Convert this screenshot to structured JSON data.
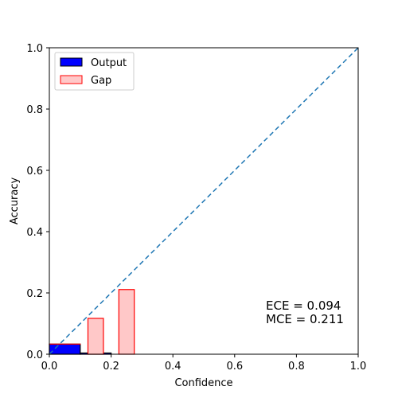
{
  "chart_data": {
    "type": "bar",
    "title": "",
    "xlabel": "Confidence",
    "ylabel": "Accuracy",
    "xlim": [
      0.0,
      1.0
    ],
    "ylim": [
      0.0,
      1.0
    ],
    "x_ticks": [
      "0.0",
      "0.2",
      "0.4",
      "0.6",
      "0.8",
      "1.0"
    ],
    "y_ticks": [
      "0.0",
      "0.2",
      "0.4",
      "0.6",
      "0.8",
      "1.0"
    ],
    "grid": false,
    "legend_position": "top-left",
    "legend": [
      {
        "name": "Output",
        "color": "#0000ff",
        "edge": "#000000"
      },
      {
        "name": "Gap",
        "color": "#ffc8c8",
        "edge": "#ff0000"
      }
    ],
    "series": [
      {
        "name": "Output",
        "bins": [
          {
            "x0": 0.0,
            "x1": 0.1,
            "value": 0.033
          },
          {
            "x0": 0.1,
            "x1": 0.2,
            "value": 0.004
          }
        ]
      },
      {
        "name": "Gap",
        "bins": [
          {
            "x0": 0.0,
            "x1": 0.1,
            "bottom": 0.033,
            "value": 0.0
          },
          {
            "x0": 0.125,
            "x1": 0.175,
            "bottom": 0.0,
            "value": 0.117
          },
          {
            "x0": 0.225,
            "x1": 0.275,
            "bottom": 0.0,
            "value": 0.211
          }
        ]
      }
    ],
    "reference_line": {
      "from": [
        0.0,
        0.0
      ],
      "to": [
        1.0,
        1.0
      ],
      "style": "dashed",
      "color": "#1f77b4"
    },
    "annotations": [
      "ECE = 0.094",
      "MCE = 0.211"
    ]
  }
}
